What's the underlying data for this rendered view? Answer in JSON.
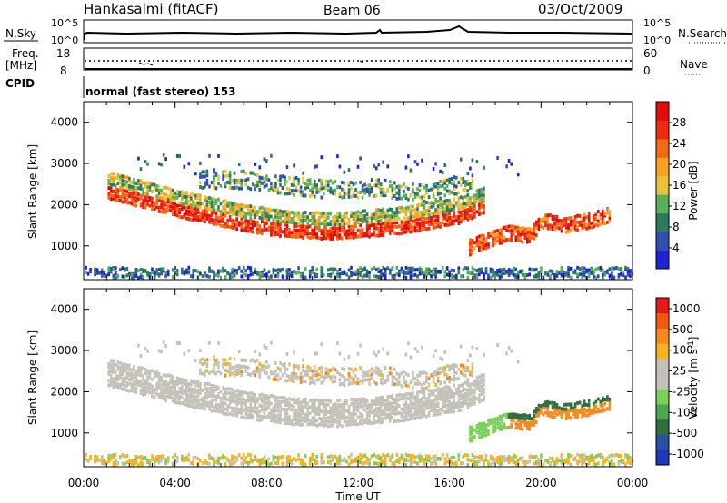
{
  "header": {
    "station": "Hankasalmi (fitACF)",
    "beam": "Beam 06",
    "date": "03/Oct/2009"
  },
  "noise_panel": {
    "left_label": "N.Sky",
    "right_label": "N.Search",
    "left_ticks": [
      "10^5",
      "10^0"
    ],
    "right_ticks": [
      "10^5",
      "10^0"
    ]
  },
  "freq_panel": {
    "left_label": "Freq.",
    "left_unit": "[MHz]",
    "right_label": "Nave",
    "left_ticks": [
      "18",
      "8"
    ],
    "right_ticks": [
      "60",
      "0"
    ]
  },
  "cpid_panel": {
    "label": "CPID",
    "text": "normal (fast stereo) 153"
  },
  "colors": {
    "power_scale": [
      "#1f22d9",
      "#2f4fb0",
      "#2d7a5e",
      "#58b05a",
      "#e8c23a",
      "#f5a020",
      "#f26a14",
      "#ee2a10",
      "#e30c0c"
    ],
    "velocity_scale": [
      "#e31a1c",
      "#f05a10",
      "#f68a1e",
      "#f7b21f",
      "#c4c2b8",
      "#c4c2b8",
      "#7ccf5a",
      "#4aa84c",
      "#2f6e3f",
      "#2d4fa0",
      "#1f3ab8"
    ],
    "grey_scatter": "#c4c2b8"
  },
  "chart_data": [
    {
      "type": "heatmap",
      "title": "",
      "ylabel": "Slant Range [km]",
      "xlabel": "",
      "xlim": [
        "00:00",
        "24:00"
      ],
      "ylim": [
        180,
        4500
      ],
      "yticks": [
        1000,
        2000,
        3000,
        4000
      ],
      "colorbar": {
        "label": "Power [dB]",
        "range": [
          0,
          32
        ],
        "ticks": [
          4,
          8,
          12,
          16,
          20,
          24,
          28
        ]
      },
      "echo_bands": [
        {
          "name": "main",
          "time_h": [
            1.0,
            4.5,
            5.0,
            7.0,
            9.0,
            11.0,
            12.0,
            14.0,
            15.5,
            16.5,
            17.5
          ],
          "range_km": [
            2250,
            1750,
            1700,
            1450,
            1300,
            1250,
            1300,
            1400,
            1550,
            1650,
            1900
          ]
        },
        {
          "name": "upper",
          "time_h": [
            5.0,
            7.0,
            9.0,
            11.0,
            13.0,
            15.0,
            16.0,
            17.0
          ],
          "range_km": [
            2450,
            2450,
            2300,
            2200,
            2250,
            2100,
            2300,
            2350
          ]
        },
        {
          "name": "late",
          "time_h": [
            16.8,
            17.5,
            18.5,
            19.5,
            20.0,
            21.0,
            22.0,
            23.0
          ],
          "range_km": [
            850,
            1000,
            1200,
            1150,
            1500,
            1400,
            1500,
            1650
          ]
        }
      ],
      "grid": true
    },
    {
      "type": "heatmap",
      "title": "",
      "ylabel": "Slant Range [km]",
      "xlabel": "Time UT",
      "xlim": [
        "00:00",
        "24:00"
      ],
      "ylim": [
        180,
        4500
      ],
      "yticks": [
        1000,
        2000,
        3000,
        4000
      ],
      "xticks": [
        "00:00",
        "04:00",
        "08:00",
        "12:00",
        "16:00",
        "20:00",
        "00:00"
      ],
      "colorbar": {
        "label": "Velocity [m s^-1]",
        "tick_labels": [
          "1000",
          "500",
          "100",
          "25",
          "-25",
          "-100",
          "-500",
          "-1000"
        ]
      },
      "grid": true
    }
  ]
}
